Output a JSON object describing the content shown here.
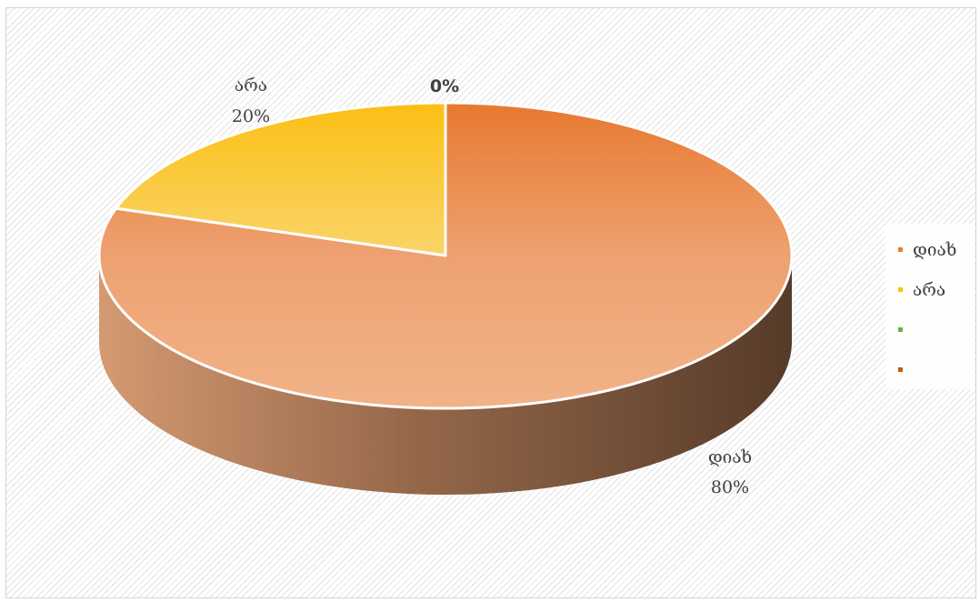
{
  "chart_data": {
    "type": "pie",
    "style": "3d",
    "categories": [
      "დიახ",
      "არა",
      "",
      ""
    ],
    "values": [
      80,
      20,
      0,
      0
    ],
    "data_labels": [
      {
        "category": "დიახ",
        "percent": "80%"
      },
      {
        "category": "არა",
        "percent": "20%"
      },
      {
        "category": "",
        "percent": "0%"
      }
    ],
    "colors": [
      "#ED7D31",
      "#FFC000",
      "#70AD47",
      "#C55A11"
    ],
    "legend_position": "right"
  },
  "legend": [
    {
      "label": "დიახ",
      "color": "#ED7D31"
    },
    {
      "label": "არა",
      "color": "#FFC000"
    },
    {
      "label": "",
      "color": "#70AD47"
    },
    {
      "label": "",
      "color": "#C55A11"
    }
  ]
}
